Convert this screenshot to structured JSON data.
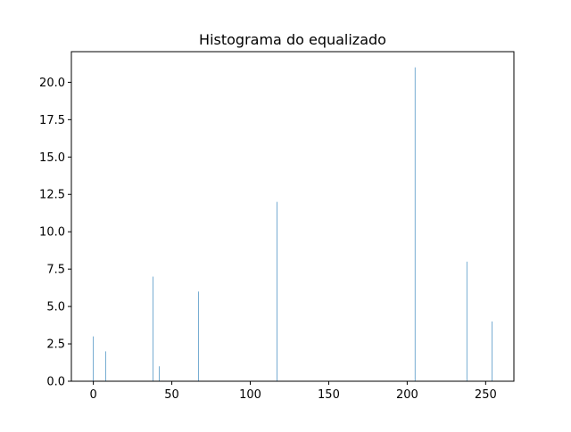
{
  "chart_data": {
    "type": "bar",
    "title": "Histograma do equalizado",
    "xlabel": "",
    "ylabel": "",
    "xlim": [
      -14,
      268
    ],
    "ylim": [
      0,
      22.05
    ],
    "xticks": [
      0,
      50,
      100,
      150,
      200,
      250
    ],
    "xtick_labels": [
      "0",
      "50",
      "100",
      "150",
      "200",
      "250"
    ],
    "yticks": [
      0,
      2.5,
      5,
      7.5,
      10,
      12.5,
      15,
      17.5,
      20
    ],
    "ytick_labels": [
      "0.0",
      "2.5",
      "5.0",
      "7.5",
      "10.0",
      "12.5",
      "15.0",
      "17.5",
      "20.0"
    ],
    "grid": false,
    "bar_color": "#1f77b4",
    "x": [
      0,
      8,
      38,
      42,
      67,
      117,
      205,
      238,
      254
    ],
    "values": [
      3,
      2,
      7,
      1,
      6,
      12,
      21,
      8,
      4
    ]
  }
}
